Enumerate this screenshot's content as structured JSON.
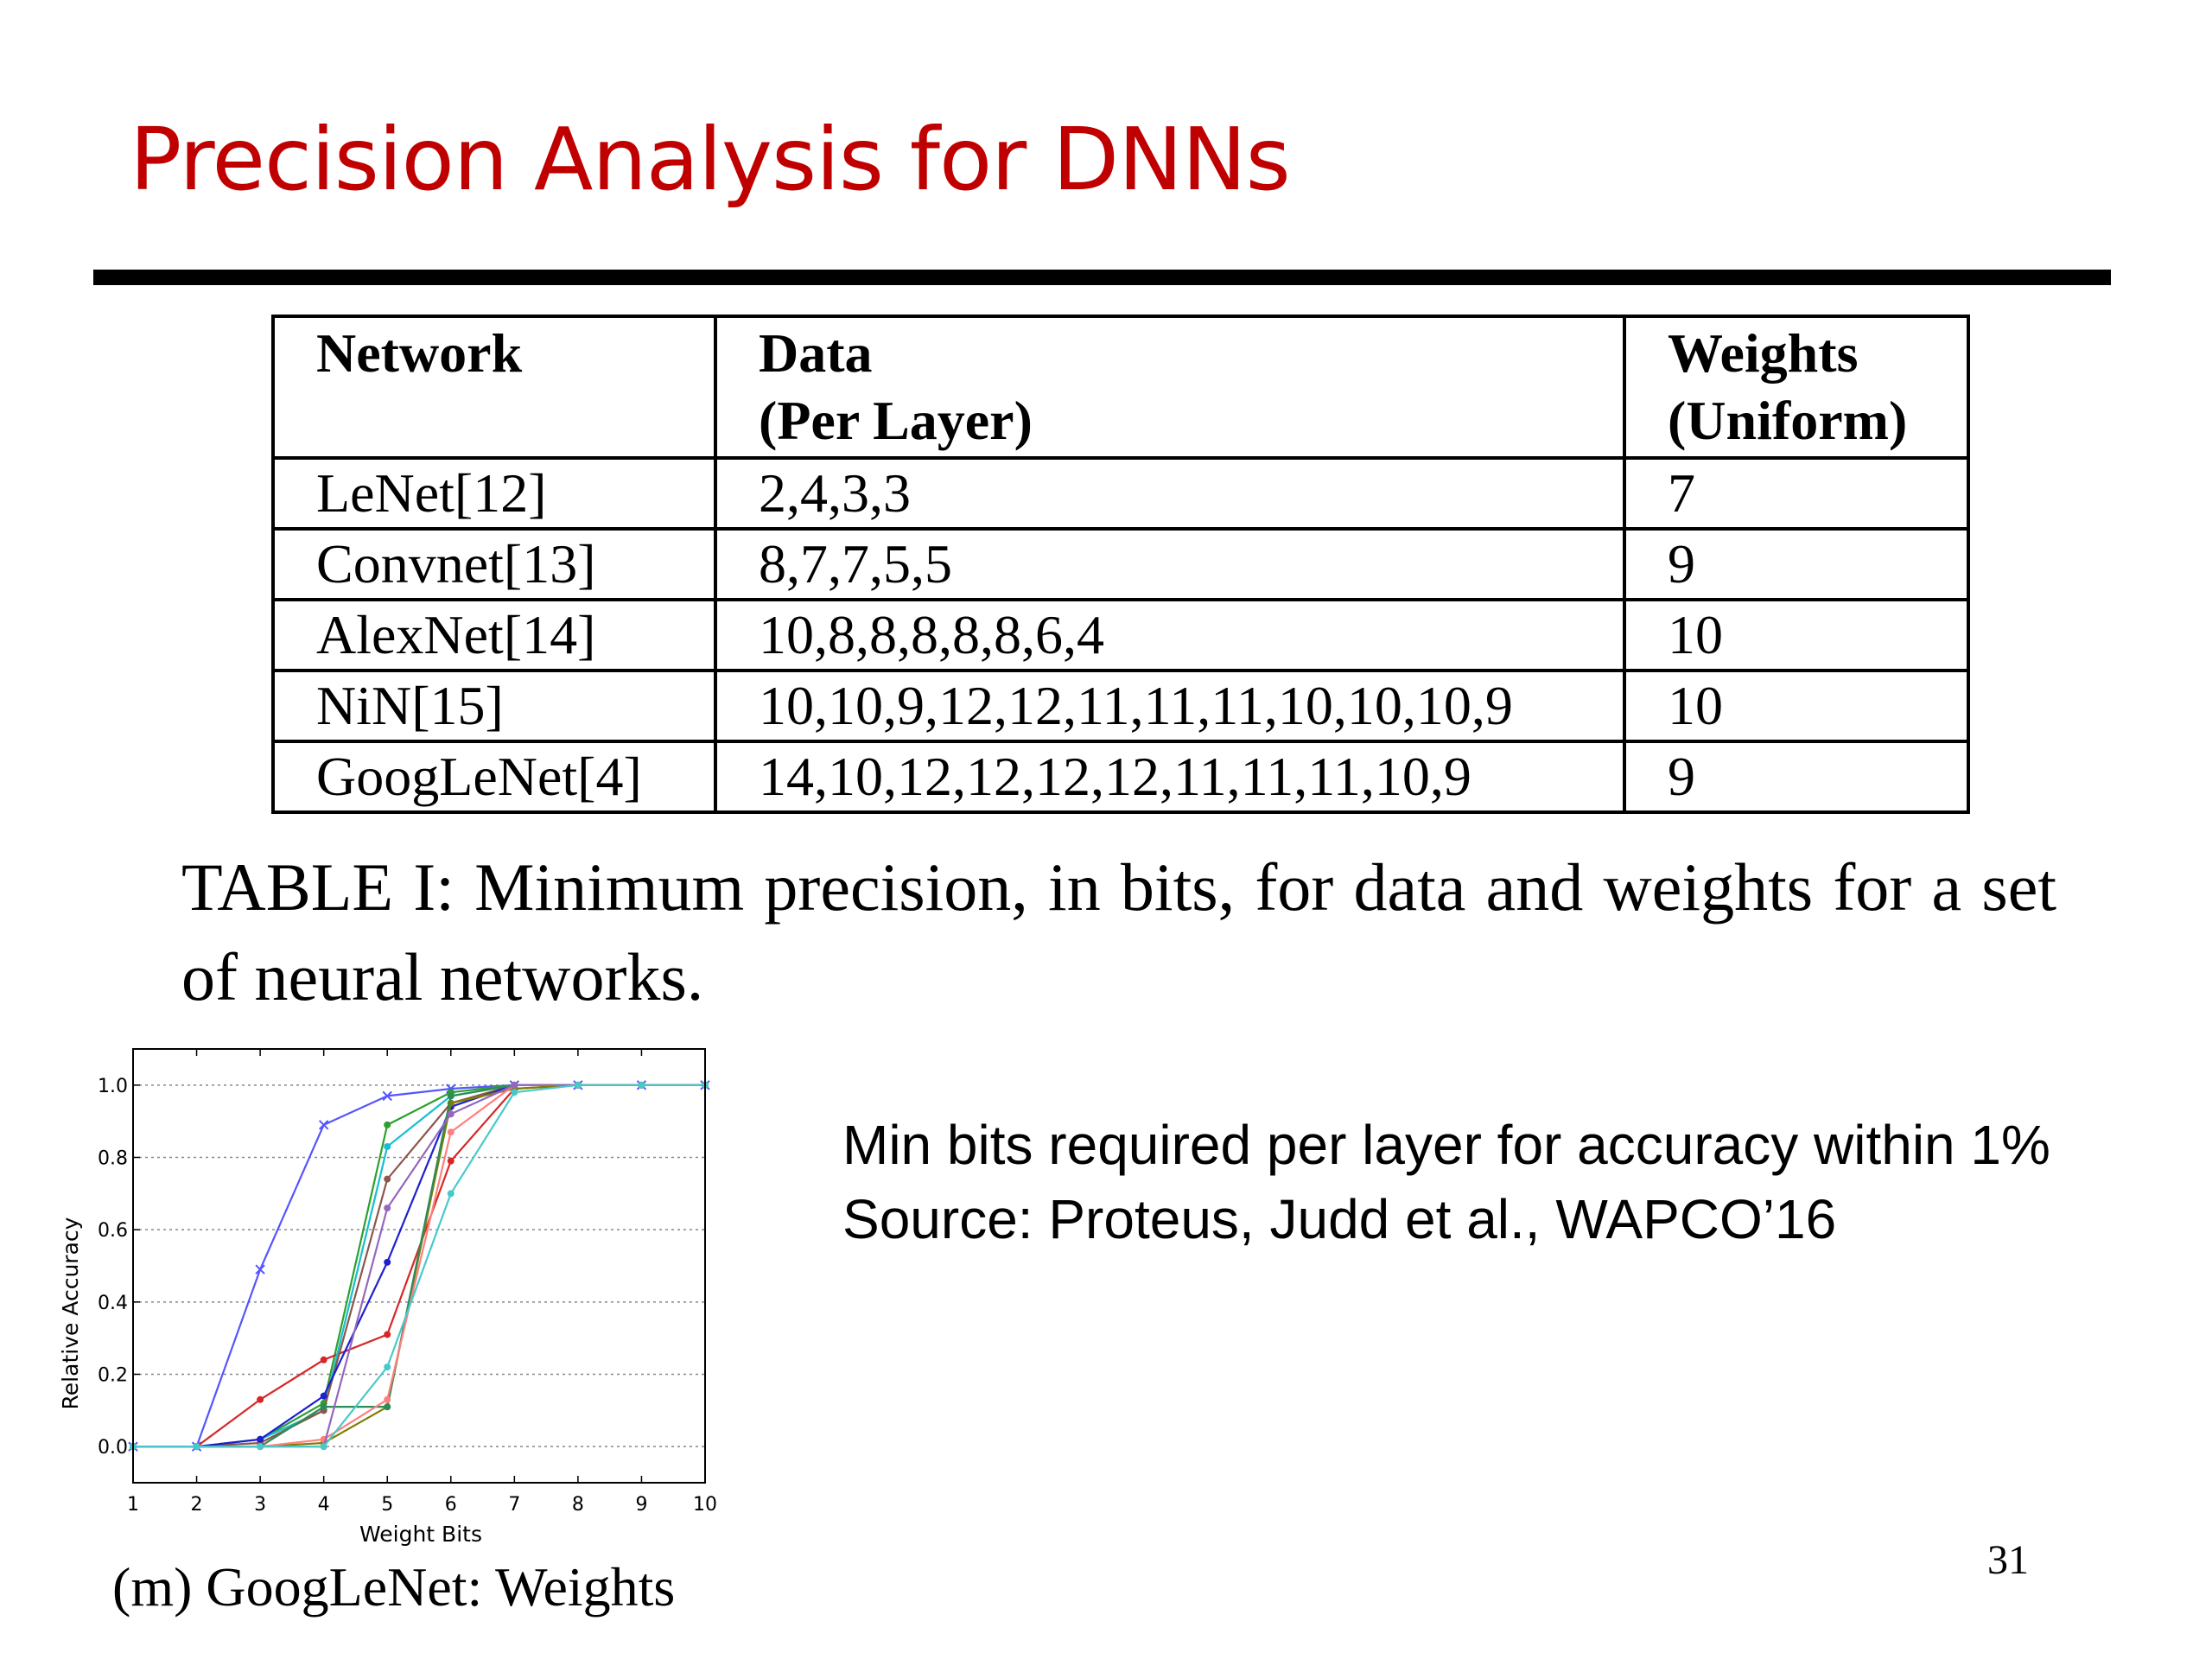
{
  "slide": {
    "title": "Precision Analysis for DNNs",
    "page_number": "31"
  },
  "table": {
    "headers": [
      [
        "Network"
      ],
      [
        "Data",
        "(Per Layer)"
      ],
      [
        "Weights",
        "(Uniform)"
      ]
    ],
    "rows": [
      [
        "LeNet[12]",
        "2,4,3,3",
        "7"
      ],
      [
        "Convnet[13]",
        "8,7,7,5,5",
        "9"
      ],
      [
        "AlexNet[14]",
        "10,8,8,8,8,8,6,4",
        "10"
      ],
      [
        "NiN[15]",
        "10,10,9,12,12,11,11,11,10,10,10,9",
        "10"
      ],
      [
        "GoogLeNet[4]",
        "14,10,12,12,12,12,11,11,11,10,9",
        "9"
      ]
    ],
    "caption": "TABLE I: Minimum precision, in bits, for data and weights for a set of neural networks."
  },
  "note": {
    "line1": "Min bits required per layer for accuracy within 1%",
    "line2": "Source: Proteus, Judd et al., WAPCO’16"
  },
  "figure": {
    "subcaption": "(m) GoogLeNet: Weights"
  },
  "chart_data": {
    "type": "line",
    "xlabel": "Weight Bits",
    "ylabel": "Relative Accuracy",
    "xlim": [
      1,
      10
    ],
    "ylim": [
      -0.1,
      1.1
    ],
    "x_ticks": [
      "1",
      "2",
      "3",
      "4",
      "5",
      "6",
      "7",
      "8",
      "9",
      "10"
    ],
    "y_ticks": [
      "0.0",
      "0.2",
      "0.4",
      "0.6",
      "0.8",
      "1.0"
    ],
    "grid": true,
    "x": [
      1,
      2,
      3,
      4,
      5,
      6,
      7,
      8,
      9,
      10
    ],
    "series": [
      {
        "color": "#5555ff",
        "marker": "x",
        "values": [
          0.0,
          0.0,
          0.49,
          0.89,
          0.97,
          0.99,
          1.0,
          1.0,
          1.0,
          1.0
        ]
      },
      {
        "color": "#2ca02c",
        "marker": "dot",
        "values": [
          0.0,
          0.0,
          0.02,
          0.12,
          0.89,
          0.98,
          1.0,
          1.0,
          1.0,
          1.0
        ]
      },
      {
        "color": "#d62728",
        "marker": "dot",
        "values": [
          0.0,
          0.0,
          0.13,
          0.24,
          0.31,
          0.79,
          0.99,
          1.0,
          1.0,
          1.0
        ]
      },
      {
        "color": "#17becf",
        "marker": "dot",
        "values": [
          0.0,
          0.0,
          0.02,
          0.1,
          0.83,
          0.97,
          1.0,
          1.0,
          1.0,
          1.0
        ]
      },
      {
        "color": "#8c564b",
        "marker": "dot",
        "values": [
          0.0,
          0.0,
          0.01,
          0.1,
          0.74,
          0.95,
          1.0,
          1.0,
          1.0,
          1.0
        ]
      },
      {
        "color": "#1f1fd0",
        "marker": "dot",
        "values": [
          0.0,
          0.0,
          0.02,
          0.14,
          0.51,
          0.94,
          1.0,
          1.0,
          1.0,
          1.0
        ]
      },
      {
        "color": "#7f7f00",
        "marker": "dot",
        "values": [
          0.0,
          0.0,
          0.0,
          0.01,
          0.11,
          0.95,
          0.99,
          1.0,
          1.0,
          1.0
        ]
      },
      {
        "color": "#2e8b57",
        "marker": "dot",
        "values": [
          0.0,
          0.0,
          0.0,
          0.11,
          0.11,
          0.97,
          1.0,
          1.0,
          1.0,
          1.0
        ]
      },
      {
        "color": "#ff7f7f",
        "marker": "dot",
        "values": [
          0.0,
          0.0,
          0.0,
          0.02,
          0.13,
          0.87,
          1.0,
          1.0,
          1.0,
          1.0
        ]
      },
      {
        "color": "#9467bd",
        "marker": "dot",
        "values": [
          0.0,
          0.0,
          0.0,
          0.0,
          0.66,
          0.92,
          1.0,
          1.0,
          1.0,
          1.0
        ]
      },
      {
        "color": "#48c9c9",
        "marker": "dot",
        "values": [
          0.0,
          0.0,
          0.0,
          0.0,
          0.22,
          0.7,
          0.98,
          1.0,
          1.0,
          1.0
        ]
      }
    ]
  }
}
